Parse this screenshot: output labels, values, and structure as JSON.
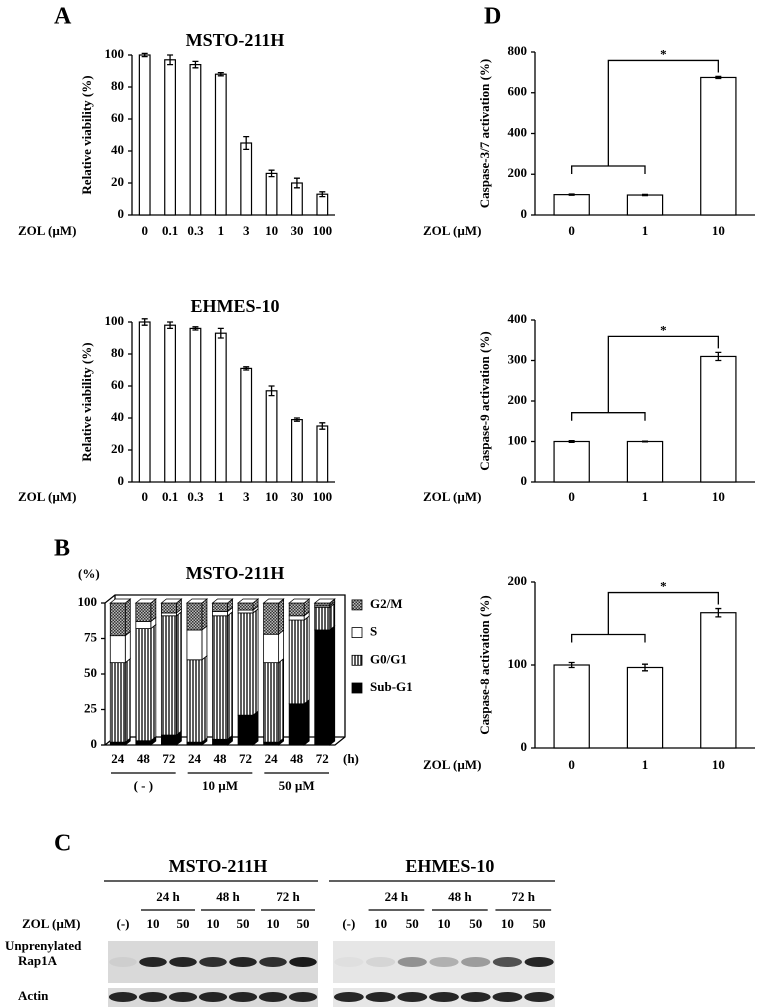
{
  "panel_labels": [
    "A",
    "B",
    "C",
    "D"
  ],
  "chart_data": [
    {
      "type": "bar",
      "title": "MSTO-211H",
      "y_label": "Relative viability (%)",
      "x_label": "ZOL (µM)",
      "categories": [
        "0",
        "0.1",
        "0.3",
        "1",
        "3",
        "10",
        "30",
        "100"
      ],
      "values": [
        100,
        97,
        94,
        88,
        45,
        26,
        20,
        13
      ],
      "errors": [
        1,
        3,
        2,
        1,
        4,
        2,
        3,
        1.5
      ],
      "ylim": [
        0,
        100
      ],
      "yticks": [
        0,
        20,
        40,
        60,
        80,
        100
      ],
      "color": "#ffffff"
    },
    {
      "type": "bar",
      "title": "EHMES-10",
      "y_label": "Relative viability (%)",
      "x_label": "ZOL (µM)",
      "categories": [
        "0",
        "0.1",
        "0.3",
        "1",
        "3",
        "10",
        "30",
        "100"
      ],
      "values": [
        100,
        98,
        96,
        93,
        71,
        57,
        39,
        35
      ],
      "errors": [
        2,
        2,
        1,
        3,
        1,
        3,
        1,
        2
      ],
      "ylim": [
        0,
        100
      ],
      "yticks": [
        0,
        20,
        40,
        60,
        80,
        100
      ],
      "color": "#ffffff"
    },
    {
      "type": "stacked_bar_3d",
      "title": "MSTO-211H",
      "y_label": "(%)",
      "x_label": "(h)",
      "categories": [
        "24",
        "48",
        "72",
        "24",
        "48",
        "72",
        "24",
        "48",
        "72"
      ],
      "groups": [
        "( - )",
        "10 µM",
        "50 µM"
      ],
      "series": [
        {
          "name": "Sub-G1",
          "color": "#000000",
          "fill": "solid",
          "values": [
            2,
            3,
            7,
            2,
            4,
            21,
            2,
            29,
            81
          ]
        },
        {
          "name": "G0/G1",
          "color": "#ffffff",
          "fill": "hatch",
          "values": [
            56,
            79,
            84,
            58,
            87,
            72,
            56,
            59,
            16
          ]
        },
        {
          "name": "S",
          "color": "#ffffff",
          "fill": "solid",
          "values": [
            19,
            5,
            2,
            21,
            3,
            2,
            20,
            3,
            1
          ]
        },
        {
          "name": "G2/M",
          "color": "#555555",
          "fill": "dots",
          "values": [
            23,
            13,
            7,
            19,
            6,
            5,
            22,
            9,
            2
          ]
        }
      ],
      "ylim": [
        0,
        100
      ],
      "yticks": [
        0,
        25,
        50,
        75,
        100
      ]
    },
    {
      "type": "bar",
      "y_label": "Caspase-3/7 activation (%)",
      "x_label": "ZOL (µM)",
      "categories": [
        "0",
        "1",
        "10"
      ],
      "values": [
        100,
        98,
        675
      ],
      "errors": [
        3,
        3,
        5
      ],
      "ylim": [
        0,
        800
      ],
      "yticks": [
        0,
        200,
        400,
        600,
        800
      ],
      "color": "#ffffff",
      "significance": "*"
    },
    {
      "type": "bar",
      "y_label": "Caspase-9 activation (%)",
      "x_label": "ZOL (µM)",
      "categories": [
        "0",
        "1",
        "10"
      ],
      "values": [
        100,
        100,
        310
      ],
      "errors": [
        2,
        1,
        10
      ],
      "ylim": [
        0,
        400
      ],
      "yticks": [
        0,
        100,
        200,
        300,
        400
      ],
      "color": "#ffffff",
      "significance": "*"
    },
    {
      "type": "bar",
      "y_label": "Caspase-8 activation (%)",
      "x_label": "ZOL (µM)",
      "categories": [
        "0",
        "1",
        "10"
      ],
      "values": [
        100,
        97,
        163
      ],
      "errors": [
        3,
        4,
        5
      ],
      "ylim": [
        0,
        200
      ],
      "yticks": [
        0,
        100,
        200
      ],
      "color": "#ffffff",
      "significance": "*"
    }
  ],
  "blot": {
    "x_label": "ZOL (µM)",
    "cell_lines": [
      {
        "name": "MSTO-211H",
        "times": [
          "24 h",
          "48 h",
          "72 h"
        ],
        "lanes": [
          "(-)",
          "10",
          "50",
          "10",
          "50",
          "10",
          "50"
        ]
      },
      {
        "name": "EHMES-10",
        "times": [
          "24 h",
          "48 h",
          "72 h"
        ],
        "lanes": [
          "(-)",
          "10",
          "50",
          "10",
          "50",
          "10",
          "50"
        ]
      }
    ],
    "rows": [
      [
        "Unprenylated",
        "Rap1A"
      ],
      [
        "Actin"
      ]
    ]
  }
}
